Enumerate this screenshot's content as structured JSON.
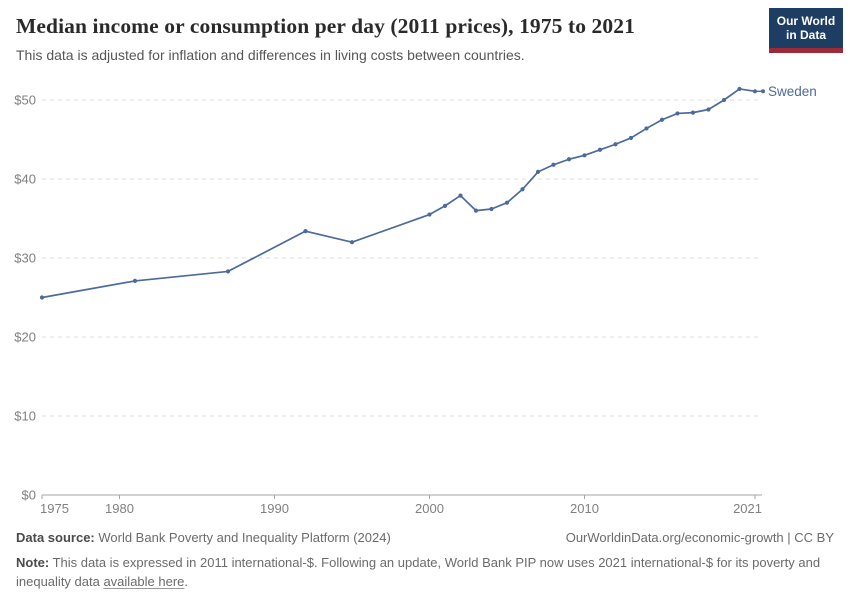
{
  "header": {
    "title": "Median income or consumption per day (2011 prices), 1975 to 2021",
    "subtitle": "This data is adjusted for inflation and differences in living costs between countries.",
    "logo": {
      "line1": "Our World",
      "line2": "in Data",
      "bg_color": "#1d3d63",
      "bar_color": "#9e2a38"
    }
  },
  "chart_data": {
    "type": "line",
    "title": "Median income or consumption per day (2011 prices), 1975 to 2021",
    "xlabel": "",
    "ylabel": "",
    "xlim": [
      1975,
      2021
    ],
    "ylim": [
      0,
      52
    ],
    "x_ticks": [
      1975,
      1980,
      1990,
      2000,
      2010,
      2021
    ],
    "y_ticks": [
      0,
      10,
      20,
      30,
      40,
      50
    ],
    "y_tick_prefix": "$",
    "grid": "horizontal-dashed",
    "legend_position": "line-end-label",
    "series": [
      {
        "name": "Sweden",
        "color": "#4C6A9C",
        "years": [
          1975,
          1981,
          1987,
          1992,
          1995,
          2000,
          2001,
          2002,
          2003,
          2004,
          2005,
          2006,
          2007,
          2008,
          2009,
          2010,
          2011,
          2012,
          2013,
          2014,
          2015,
          2016,
          2017,
          2018,
          2019,
          2020,
          2021
        ],
        "values": [
          25.0,
          27.1,
          28.3,
          33.4,
          32.0,
          35.5,
          36.6,
          37.9,
          36.0,
          36.2,
          37.0,
          38.7,
          40.9,
          41.8,
          42.5,
          43.0,
          43.7,
          44.4,
          45.2,
          46.4,
          47.5,
          48.3,
          48.4,
          48.8,
          50.0,
          51.4,
          51.1
        ]
      }
    ],
    "style": {
      "grid_color": "#dddddd",
      "axis_color": "#a5a5a5",
      "tick_text_color": "#808080"
    }
  },
  "footer": {
    "datasource_label": "Data source:",
    "datasource_text": " World Bank Poverty and Inequality Platform (2024)",
    "attribution": "OurWorldinData.org/economic-growth | CC BY",
    "note_label": "Note:",
    "note_before_link": " This data is expressed in 2011 international-$. Following an update, World Bank PIP now uses 2021 international-$ for its poverty and inequality data ",
    "note_link": "available here",
    "note_after_link": "."
  }
}
